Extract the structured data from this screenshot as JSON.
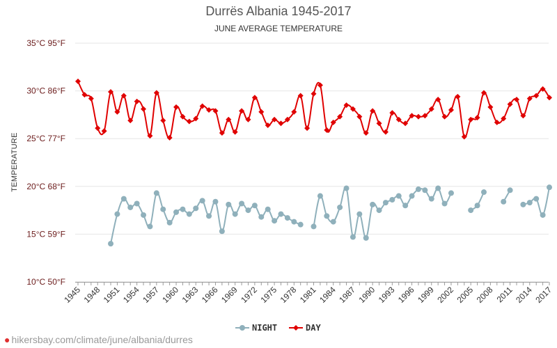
{
  "title": "Durrës Albania 1945-2017",
  "subtitle": "JUNE AVERAGE TEMPERATURE",
  "attribution": "hikersbay.com/climate/june/albania/durres",
  "colors": {
    "night": "#8fb0bb",
    "day": "#e00000",
    "grid": "#e6e6e6",
    "ytick": "#6b1b1b"
  },
  "chart_data": {
    "type": "line",
    "title": "Durrës Albania 1945-2017",
    "subtitle": "JUNE AVERAGE TEMPERATURE",
    "ylabel": "TEMPERATURE",
    "xlabel": "",
    "ylim": [
      10,
      35
    ],
    "xlim": [
      1945,
      2017
    ],
    "yticks": [
      {
        "value": 10,
        "label": "10°C 50°F"
      },
      {
        "value": 15,
        "label": "15°C 59°F"
      },
      {
        "value": 20,
        "label": "20°C 68°F"
      },
      {
        "value": 25,
        "label": "25°C 77°F"
      },
      {
        "value": 30,
        "label": "30°C 86°F"
      },
      {
        "value": 35,
        "label": "35°C 95°F"
      }
    ],
    "xticks": [
      "1945",
      "1948",
      "1951",
      "1954",
      "1957",
      "1960",
      "1963",
      "1966",
      "1969",
      "1972",
      "1975",
      "1978",
      "1981",
      "1984",
      "1987",
      "1990",
      "1993",
      "1996",
      "1999",
      "2002",
      "2005",
      "2008",
      "2011",
      "2014",
      "2017"
    ],
    "grid": true,
    "legend_position": "bottom-center",
    "x": [
      1945,
      1946,
      1947,
      1948,
      1949,
      1950,
      1951,
      1952,
      1953,
      1954,
      1955,
      1956,
      1957,
      1958,
      1959,
      1960,
      1961,
      1962,
      1963,
      1964,
      1965,
      1966,
      1967,
      1968,
      1969,
      1970,
      1971,
      1972,
      1973,
      1974,
      1975,
      1976,
      1977,
      1978,
      1979,
      1980,
      1981,
      1982,
      1983,
      1984,
      1985,
      1986,
      1987,
      1988,
      1989,
      1990,
      1991,
      1992,
      1993,
      1994,
      1995,
      1996,
      1997,
      1998,
      1999,
      2000,
      2001,
      2002,
      2003,
      2004,
      2005,
      2006,
      2007,
      2008,
      2009,
      2010,
      2011,
      2012,
      2013,
      2014,
      2015,
      2016,
      2017
    ],
    "series": [
      {
        "name": "NIGHT",
        "color": "#8fb0bb",
        "values": [
          null,
          null,
          null,
          null,
          null,
          14.0,
          17.1,
          18.7,
          17.8,
          18.2,
          17.0,
          15.8,
          19.3,
          17.6,
          16.2,
          17.3,
          17.6,
          17.1,
          17.7,
          18.5,
          16.9,
          18.4,
          15.3,
          18.1,
          17.1,
          18.2,
          17.5,
          18.0,
          16.8,
          17.6,
          16.4,
          17.1,
          16.7,
          16.3,
          16.0,
          null,
          15.8,
          19.0,
          16.9,
          16.3,
          17.8,
          19.8,
          14.7,
          17.1,
          14.6,
          18.1,
          17.5,
          18.3,
          18.6,
          19.0,
          18.0,
          19.0,
          19.7,
          19.6,
          18.7,
          19.8,
          18.2,
          19.3,
          null,
          null,
          17.5,
          18.0,
          19.4,
          null,
          null,
          18.4,
          19.6,
          null,
          18.1,
          18.3,
          18.7,
          17.0,
          19.9
        ]
      },
      {
        "name": "DAY",
        "color": "#e00000",
        "values": [
          31.0,
          29.6,
          29.2,
          26.1,
          25.8,
          29.9,
          27.8,
          29.5,
          26.9,
          28.9,
          28.1,
          25.3,
          29.8,
          26.9,
          25.1,
          28.3,
          27.3,
          26.8,
          27.1,
          28.4,
          28.0,
          27.9,
          25.6,
          27.0,
          25.7,
          27.9,
          27.0,
          29.3,
          27.8,
          26.4,
          27.0,
          26.6,
          27.0,
          27.8,
          29.5,
          26.1,
          29.7,
          30.6,
          25.9,
          26.7,
          27.3,
          28.5,
          28.1,
          27.3,
          25.6,
          27.9,
          26.6,
          25.7,
          27.7,
          27.0,
          26.6,
          27.4,
          27.3,
          27.4,
          28.1,
          29.1,
          27.3,
          28.0,
          29.4,
          25.2,
          27.0,
          27.2,
          29.8,
          28.3,
          26.7,
          27.1,
          28.6,
          29.1,
          27.4,
          29.2,
          29.5,
          30.2,
          29.3
        ]
      }
    ]
  }
}
